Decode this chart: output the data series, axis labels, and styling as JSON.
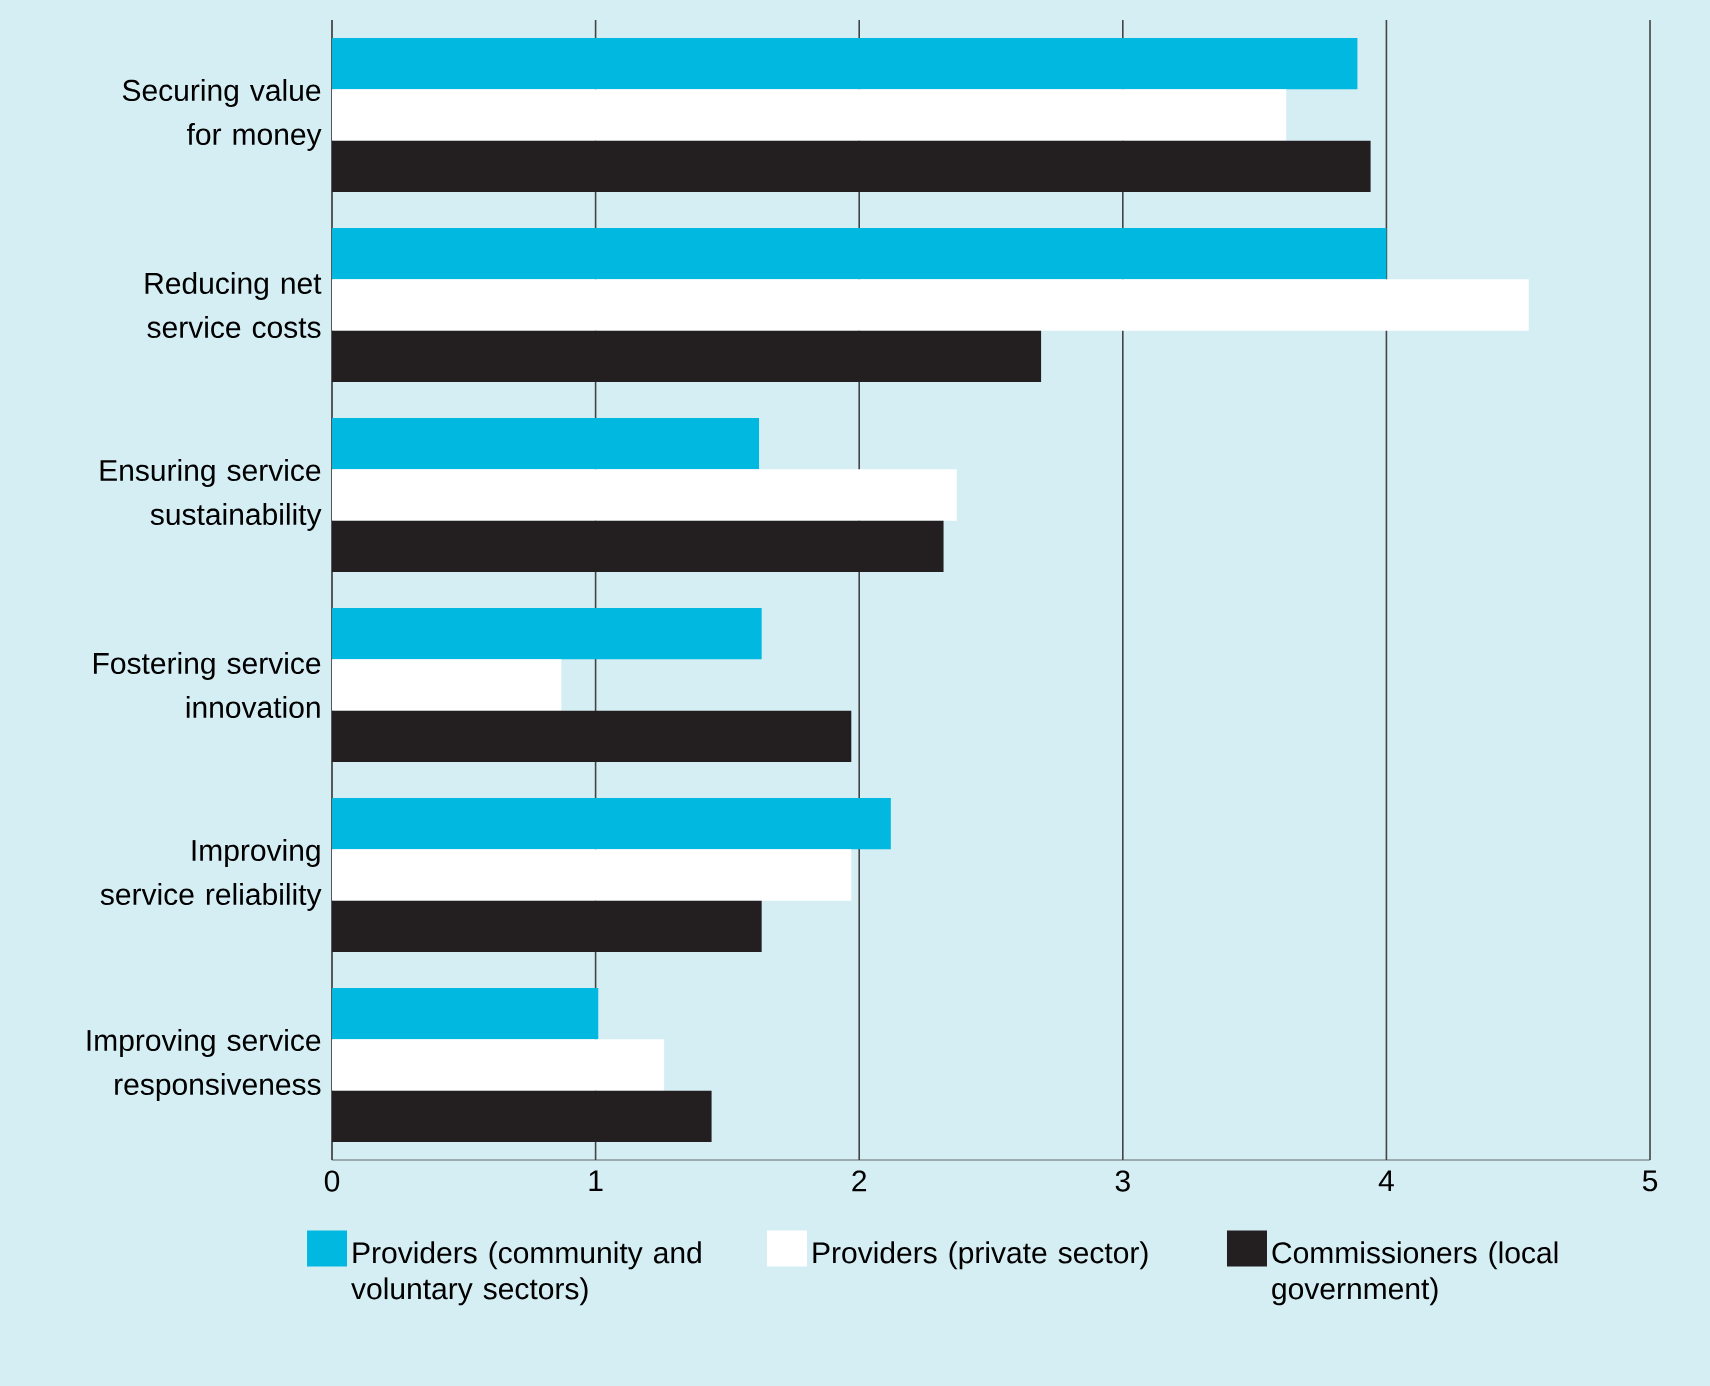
{
  "chart_data": {
    "type": "bar",
    "orientation": "horizontal",
    "categories": [
      "Securing value for money",
      "Reducing net service costs",
      "Ensuring service sustainability",
      "Fostering service innovation",
      "Improving service reliability",
      "Improving service responsiveness"
    ],
    "series": [
      {
        "name": "Providers (community and voluntary sectors)",
        "color": "#00b8e0",
        "values": [
          3.89,
          4.0,
          1.62,
          1.63,
          2.12,
          1.01
        ]
      },
      {
        "name": "Providers (private sector)",
        "color": "#ffffff",
        "values": [
          3.62,
          4.54,
          2.37,
          0.87,
          1.97,
          1.26
        ]
      },
      {
        "name": "Commissioners (local government)",
        "color": "#231f20",
        "values": [
          3.94,
          2.69,
          2.32,
          1.97,
          1.63,
          1.44
        ]
      }
    ],
    "xlim": [
      0,
      5
    ],
    "xticks": [
      0,
      1,
      2,
      3,
      4,
      5
    ],
    "grid": "x",
    "legend": "bottom"
  }
}
